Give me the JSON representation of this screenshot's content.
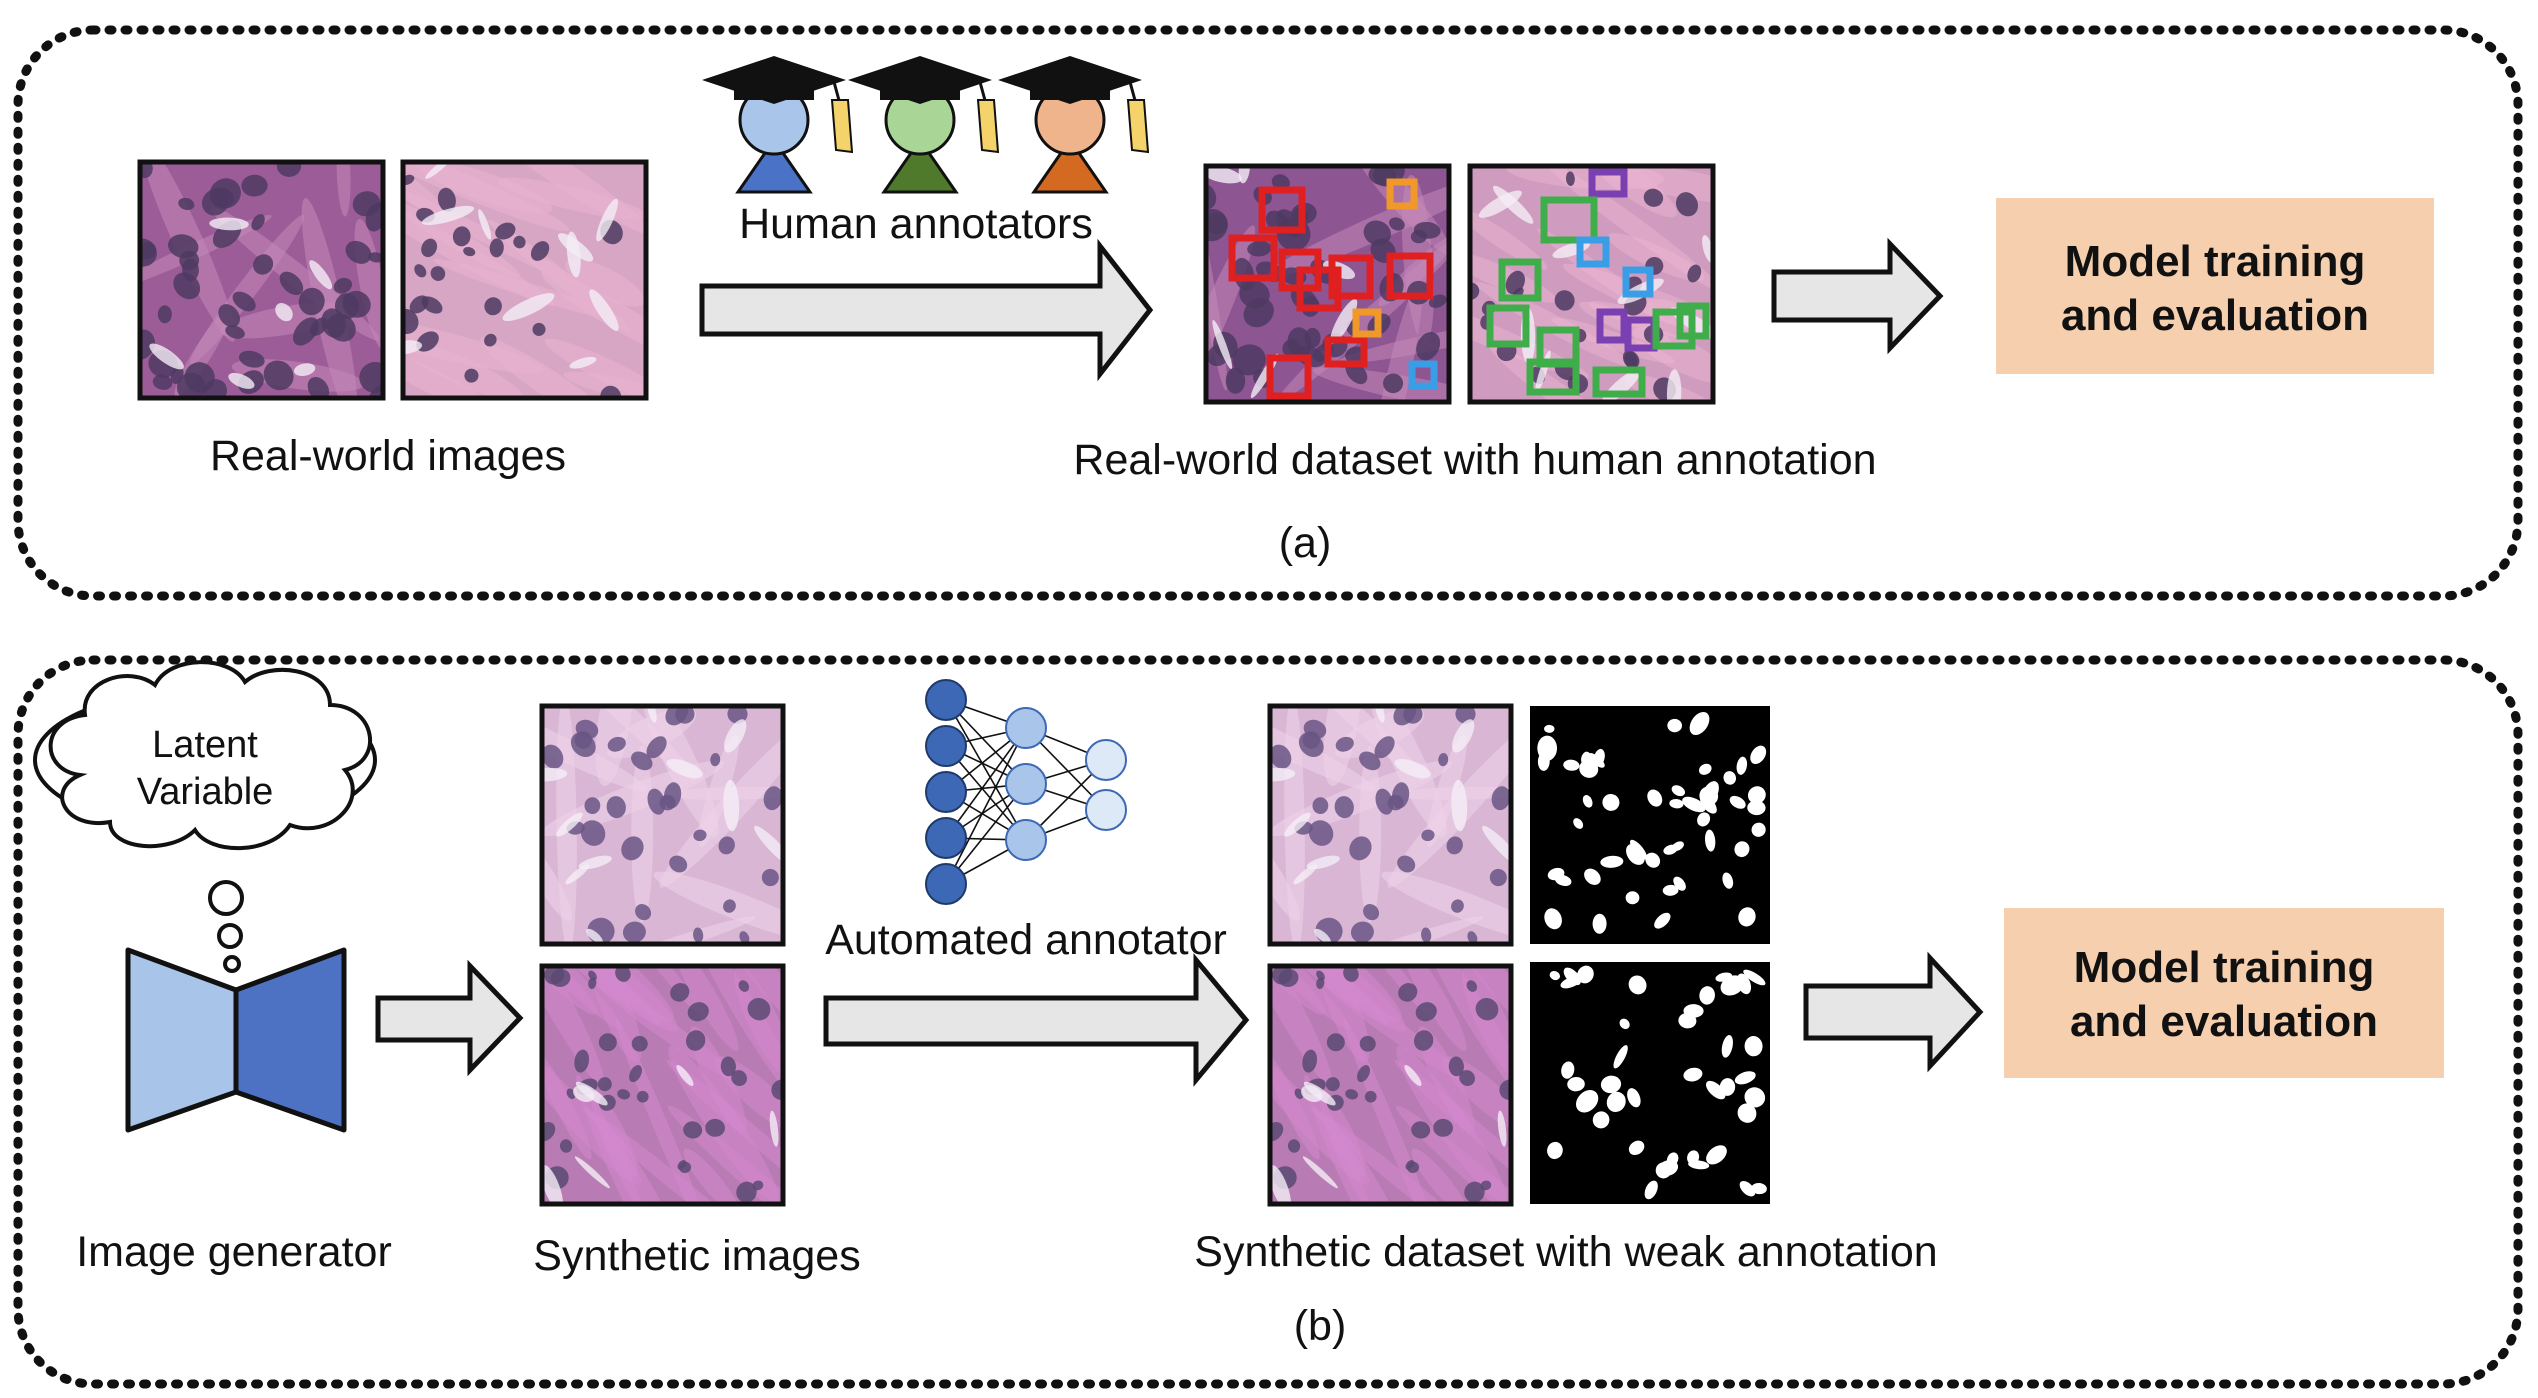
{
  "panel_a": {
    "caption": "(a)",
    "real_images_label": "Real-world images",
    "annotators_label": "Human annotators",
    "dataset_label": "Real-world dataset with human annotation",
    "model_box": {
      "line1": "Model training",
      "line2": "and evaluation"
    },
    "annotator_colors": [
      "#a9c6ea",
      "#a9d597",
      "#f0b48c"
    ],
    "annotator_body_colors": [
      "#4a72c6",
      "#4f7a2b",
      "#d46a22"
    ],
    "box_colors": {
      "red": "#e02020",
      "orange": "#f0982a",
      "blue": "#3a9ee6",
      "purple": "#7a3fb0",
      "green": "#3fae4a"
    }
  },
  "panel_b": {
    "caption": "(b)",
    "cloud_label": {
      "line1": "Latent",
      "line2": "Variable"
    },
    "generator_label": "Image generator",
    "synthetic_label": "Synthetic images",
    "annotator_label": "Automated annotator",
    "dataset_label": "Synthetic dataset with weak annotation",
    "model_box": {
      "line1": "Model training",
      "line2": "and evaluation"
    },
    "generator_colors": [
      "#a8c4e8",
      "#4d72c4"
    ],
    "nn_colors": [
      "#3d68b5",
      "#a9c6ea",
      "#dde9f6"
    ]
  },
  "colors": {
    "model_box_fill": "#f5cfae",
    "tissue_base": "#b07aa6",
    "tissue_pale": "#d7b2d3",
    "nucleus": "#4e3a62",
    "mask_bg": "#000000",
    "mask_fg": "#ffffff"
  }
}
